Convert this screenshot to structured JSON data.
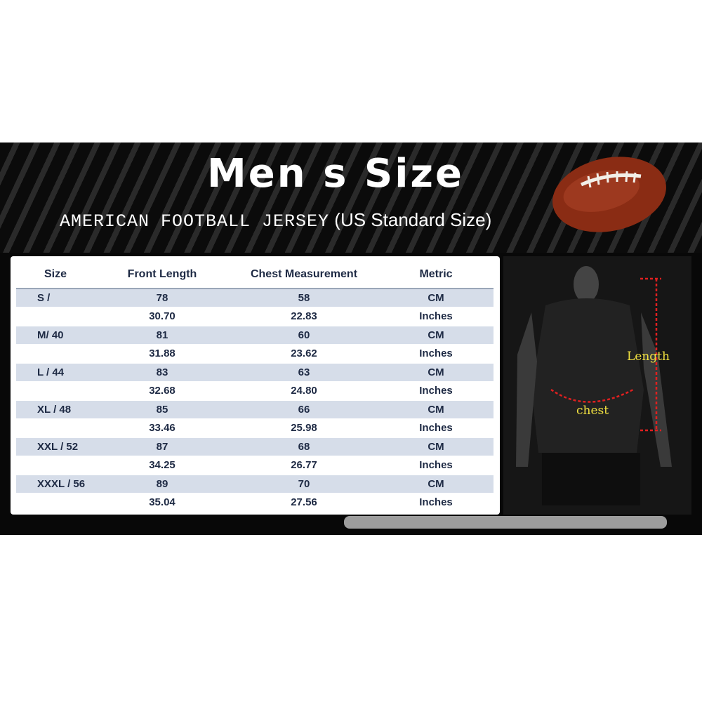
{
  "header": {
    "title": "Men s Size",
    "subtitle_main": "AMERICAN FOOTBALL JERSEY",
    "subtitle_note": "(US Standard Size)"
  },
  "table": {
    "columns": [
      "Size",
      "Front Length",
      "Chest Measurement",
      "Metric"
    ],
    "rows": [
      {
        "size": "S /",
        "front_length": "78",
        "chest": "58",
        "metric": "CM"
      },
      {
        "size": "",
        "front_length": "30.70",
        "chest": "22.83",
        "metric": "Inches"
      },
      {
        "size": "M/  40",
        "front_length": "81",
        "chest": "60",
        "metric": "CM"
      },
      {
        "size": "",
        "front_length": "31.88",
        "chest": "23.62",
        "metric": "Inches"
      },
      {
        "size": "L  / 44",
        "front_length": "83",
        "chest": "63",
        "metric": "CM"
      },
      {
        "size": "",
        "front_length": "32.68",
        "chest": "24.80",
        "metric": "Inches"
      },
      {
        "size": "XL  / 48",
        "front_length": "85",
        "chest": "66",
        "metric": "CM"
      },
      {
        "size": "",
        "front_length": "33.46",
        "chest": "25.98",
        "metric": "Inches"
      },
      {
        "size": "XXL  / 52",
        "front_length": "87",
        "chest": "68",
        "metric": "CM"
      },
      {
        "size": "",
        "front_length": "34.25",
        "chest": "26.77",
        "metric": "Inches"
      },
      {
        "size": "XXXL / 56",
        "front_length": "89",
        "chest": "70",
        "metric": "CM"
      },
      {
        "size": "",
        "front_length": "35.04",
        "chest": "27.56",
        "metric": "Inches"
      }
    ]
  },
  "photo": {
    "length_label": "Length",
    "chest_label": "chest"
  },
  "colors": {
    "background_band": "#0b0b0b",
    "row_shade": "#d6dde9",
    "text": "#1e2a44",
    "label_yellow": "#f0e040",
    "measure_red": "#e02020"
  }
}
